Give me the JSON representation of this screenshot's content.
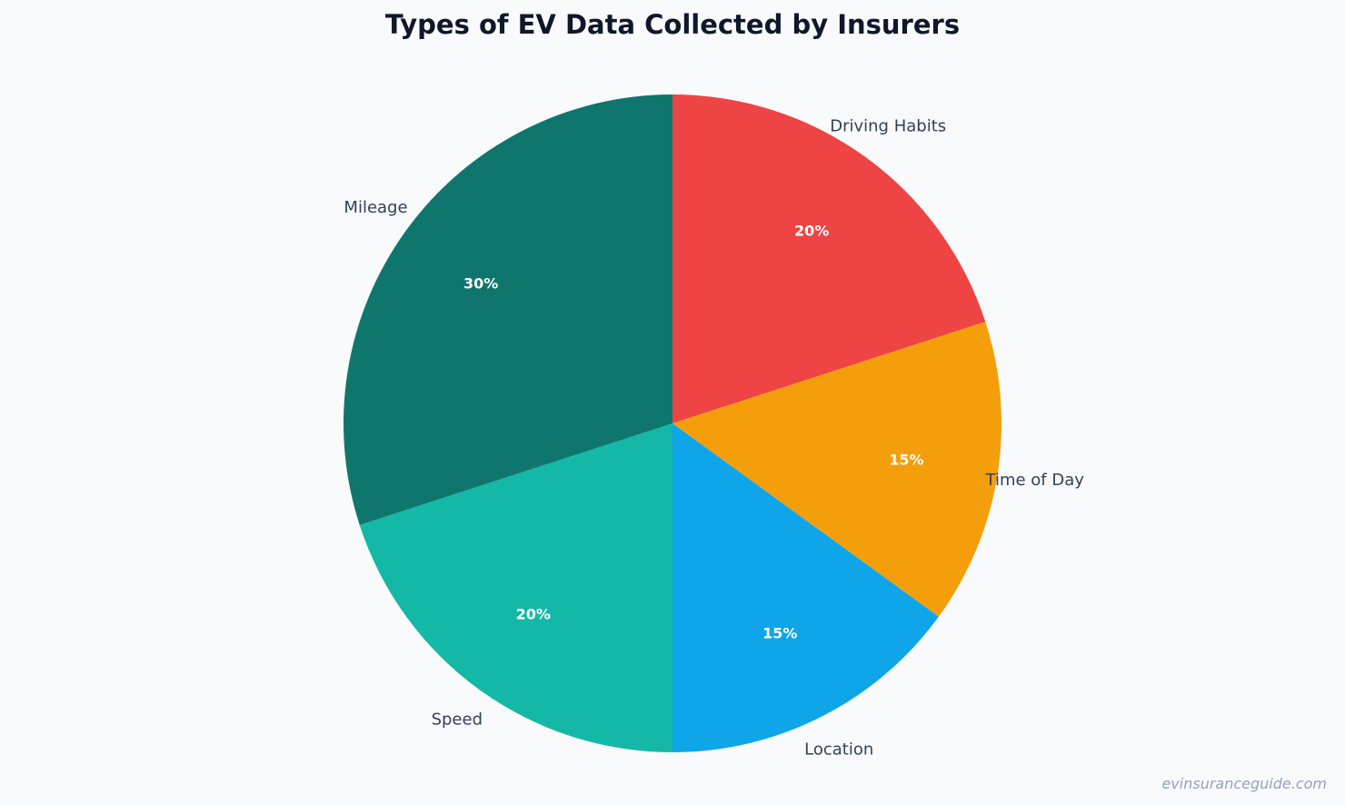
{
  "chart_data": {
    "type": "pie",
    "title": "Types of EV Data Collected by Insurers",
    "categories": [
      "Driving Habits",
      "Time of Day",
      "Location",
      "Speed",
      "Mileage"
    ],
    "values": [
      20,
      15,
      15,
      20,
      30
    ],
    "value_labels": [
      "20%",
      "15%",
      "15%",
      "20%",
      "30%"
    ],
    "colors": [
      "#ef4444",
      "#f59e0b",
      "#0ea5e9",
      "#14b8a6",
      "#0f766e"
    ],
    "start_angle": "12 o'clock",
    "direction": "clockwise"
  },
  "watermark": "evinsuranceguide.com"
}
